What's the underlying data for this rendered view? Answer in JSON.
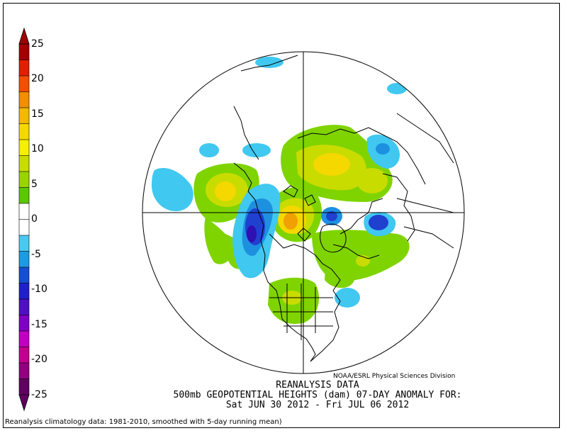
{
  "colorbar": {
    "labels": [
      "25",
      "20",
      "15",
      "10",
      "5",
      "0",
      "-5",
      "-10",
      "-15",
      "-20",
      "-25"
    ],
    "colors": [
      "#a00000",
      "#e02000",
      "#f05000",
      "#f09000",
      "#f5b800",
      "#f5d800",
      "#f5f000",
      "#c8dc00",
      "#9ad400",
      "#5ac800",
      "#ffffff",
      "#ffffff",
      "#4cc8f0",
      "#1e9ae0",
      "#1450d0",
      "#2020c8",
      "#5010c0",
      "#8000c0",
      "#c000c0",
      "#c00090",
      "#900080",
      "#600060"
    ],
    "cap_top_color": "#a00000",
    "cap_bottom_color": "#600060"
  },
  "anomaly_colors": {
    "pos1": "#7fd400",
    "pos2": "#c8dc00",
    "pos3": "#f5d800",
    "pos4": "#f0a000",
    "neg1": "#40c8f0",
    "neg2": "#1e90e0",
    "neg3": "#2040d0",
    "neg4": "#3010b0"
  },
  "titles": {
    "credit": "NOAA/ESRL Physical Sciences Division",
    "line1": "REANALYSIS DATA",
    "line2": "500mb GEOPOTENTIAL HEIGHTS (dam)    07-DAY ANOMALY FOR:",
    "line3": "Sat JUN 30 2012 - Fri JUL 06 2012",
    "footnote": "Reanalysis climatology data: 1981-2010, smoothed with 5-day running mean)"
  }
}
